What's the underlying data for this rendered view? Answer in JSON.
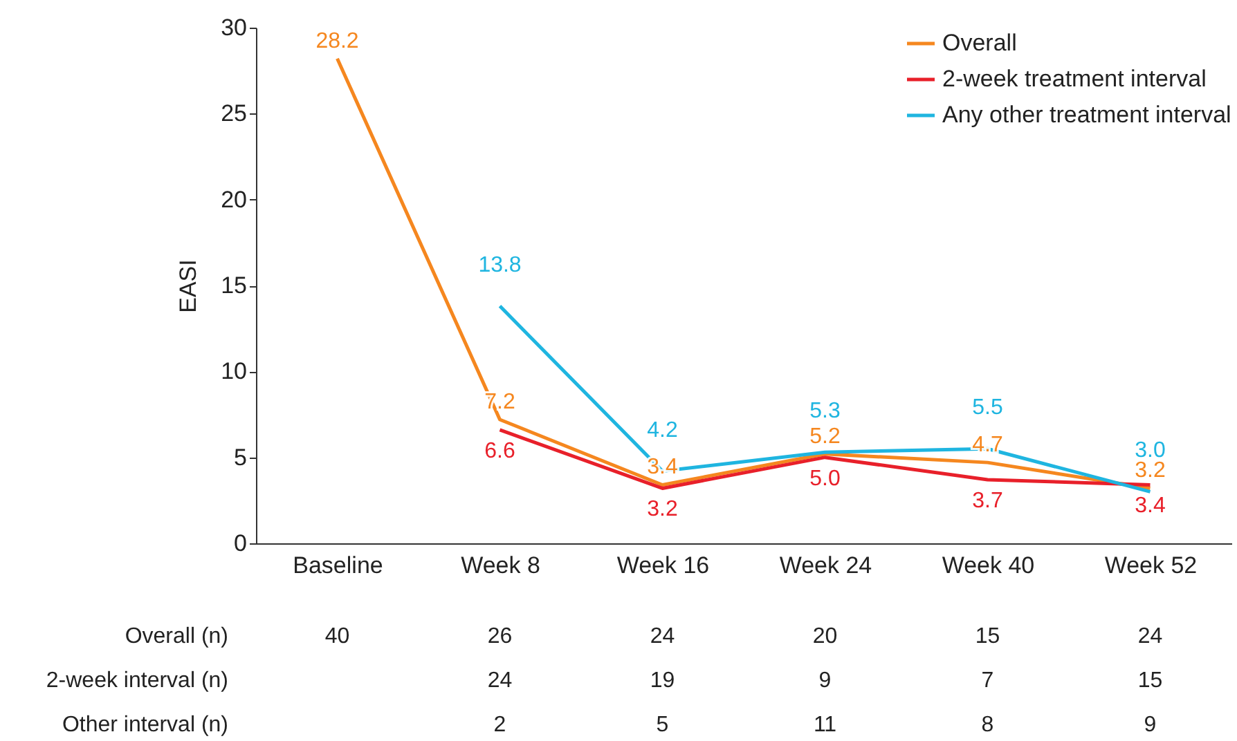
{
  "chart_data": {
    "type": "line",
    "ylabel": "EASI",
    "categories": [
      "Baseline",
      "Week 8",
      "Week 16",
      "Week 24",
      "Week 40",
      "Week 52"
    ],
    "series": [
      {
        "name": "Overall",
        "color": "#f5871f",
        "values": [
          28.2,
          7.2,
          3.4,
          5.2,
          4.7,
          3.2
        ],
        "value_labels": [
          "28.2",
          "7.2",
          "3.4",
          "5.2",
          "4.7",
          "3.2"
        ]
      },
      {
        "name": "2-week treatment interval",
        "color": "#e8202a",
        "values": [
          null,
          6.6,
          3.2,
          5.0,
          3.7,
          3.4
        ],
        "value_labels": [
          null,
          "6.6",
          "3.2",
          "5.0",
          "3.7",
          "3.4"
        ]
      },
      {
        "name": "Any other treatment interval",
        "color": "#1fb5e0",
        "values": [
          null,
          13.8,
          4.2,
          5.3,
          5.5,
          3.0
        ],
        "value_labels": [
          null,
          "13.8",
          "4.2",
          "5.3",
          "5.5",
          "3.0"
        ]
      }
    ],
    "ylim": [
      0,
      30
    ],
    "yticks": [
      0,
      5,
      10,
      15,
      20,
      25,
      30
    ],
    "grid": false,
    "legend": "top right",
    "marker": "none",
    "line_style": "solid",
    "annotations": [
      "Overall (n)\t40\t26\t24\t20\t15\t24",
      "2-week interval (n)\t\t24\t19\t9\t7\t15",
      "Other interval (n)\t\t2\t5\t11\t8\t9"
    ]
  }
}
